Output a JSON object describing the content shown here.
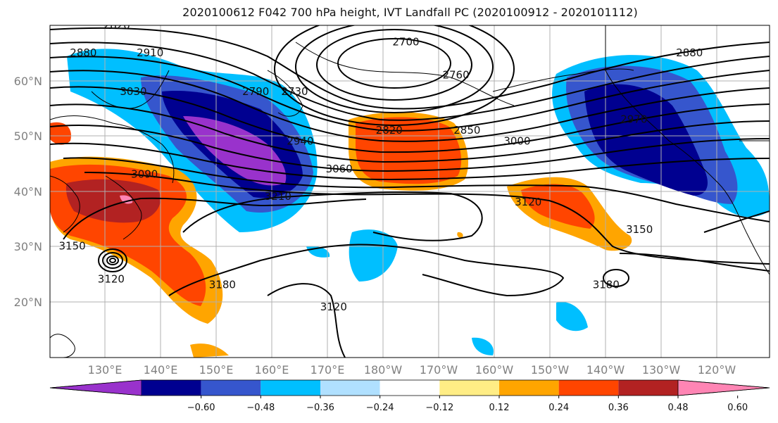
{
  "title": "2020100612 F042 700 hPa height, IVT Landfall PC (2020100912 - 2020101112)",
  "lat_labels": [
    "60°N",
    "50°N",
    "40°N",
    "30°N",
    "20°N"
  ],
  "lon_labels": [
    "130°E",
    "140°E",
    "150°E",
    "160°E",
    "170°E",
    "180°W",
    "170°W",
    "160°W",
    "150°W",
    "140°W",
    "130°W",
    "120°W"
  ],
  "colorbar": {
    "colors": [
      "#9932cc",
      "#000090",
      "#3656cd",
      "#00bfff",
      "#b0e0ff",
      "#ffffff",
      "#ffed85",
      "#ffa500",
      "#ff4500",
      "#b22222",
      "#ff85b4"
    ],
    "labels": [
      "−0.60",
      "−0.48",
      "−0.36",
      "−0.24",
      "−0.12",
      "0.12",
      "0.24",
      "0.36",
      "0.48",
      "0.60"
    ]
  },
  "contour_labels": [
    {
      "text": "2820",
      "lon": 132,
      "lat": 70
    },
    {
      "text": "2880",
      "lon": 126,
      "lat": 65
    },
    {
      "text": "2910",
      "lon": 138,
      "lat": 65
    },
    {
      "text": "3030",
      "lon": 135,
      "lat": 58
    },
    {
      "text": "2700",
      "lon": 184,
      "lat": 67
    },
    {
      "text": "2760",
      "lon": 193,
      "lat": 61
    },
    {
      "text": "2790",
      "lon": 157,
      "lat": 58
    },
    {
      "text": "2730",
      "lon": 164,
      "lat": 58
    },
    {
      "text": "2820",
      "lon": 181,
      "lat": 51
    },
    {
      "text": "2850",
      "lon": 195,
      "lat": 51
    },
    {
      "text": "2940",
      "lon": 165,
      "lat": 49
    },
    {
      "text": "3000",
      "lon": 204,
      "lat": 49
    },
    {
      "text": "2970",
      "lon": 225,
      "lat": 53
    },
    {
      "text": "2880",
      "lon": 235,
      "lat": 65
    },
    {
      "text": "3060",
      "lon": 172,
      "lat": 44
    },
    {
      "text": "3090",
      "lon": 137,
      "lat": 43
    },
    {
      "text": "3210",
      "lon": 161,
      "lat": 39
    },
    {
      "text": "3120",
      "lon": 206,
      "lat": 38
    },
    {
      "text": "3150",
      "lon": 226,
      "lat": 33
    },
    {
      "text": "3150",
      "lon": 124,
      "lat": 30
    },
    {
      "text": "3120",
      "lon": 131,
      "lat": 24
    },
    {
      "text": "3180",
      "lon": 151,
      "lat": 23
    },
    {
      "text": "3120",
      "lon": 171,
      "lat": 19
    },
    {
      "text": "3180",
      "lon": 220,
      "lat": 23
    }
  ]
}
